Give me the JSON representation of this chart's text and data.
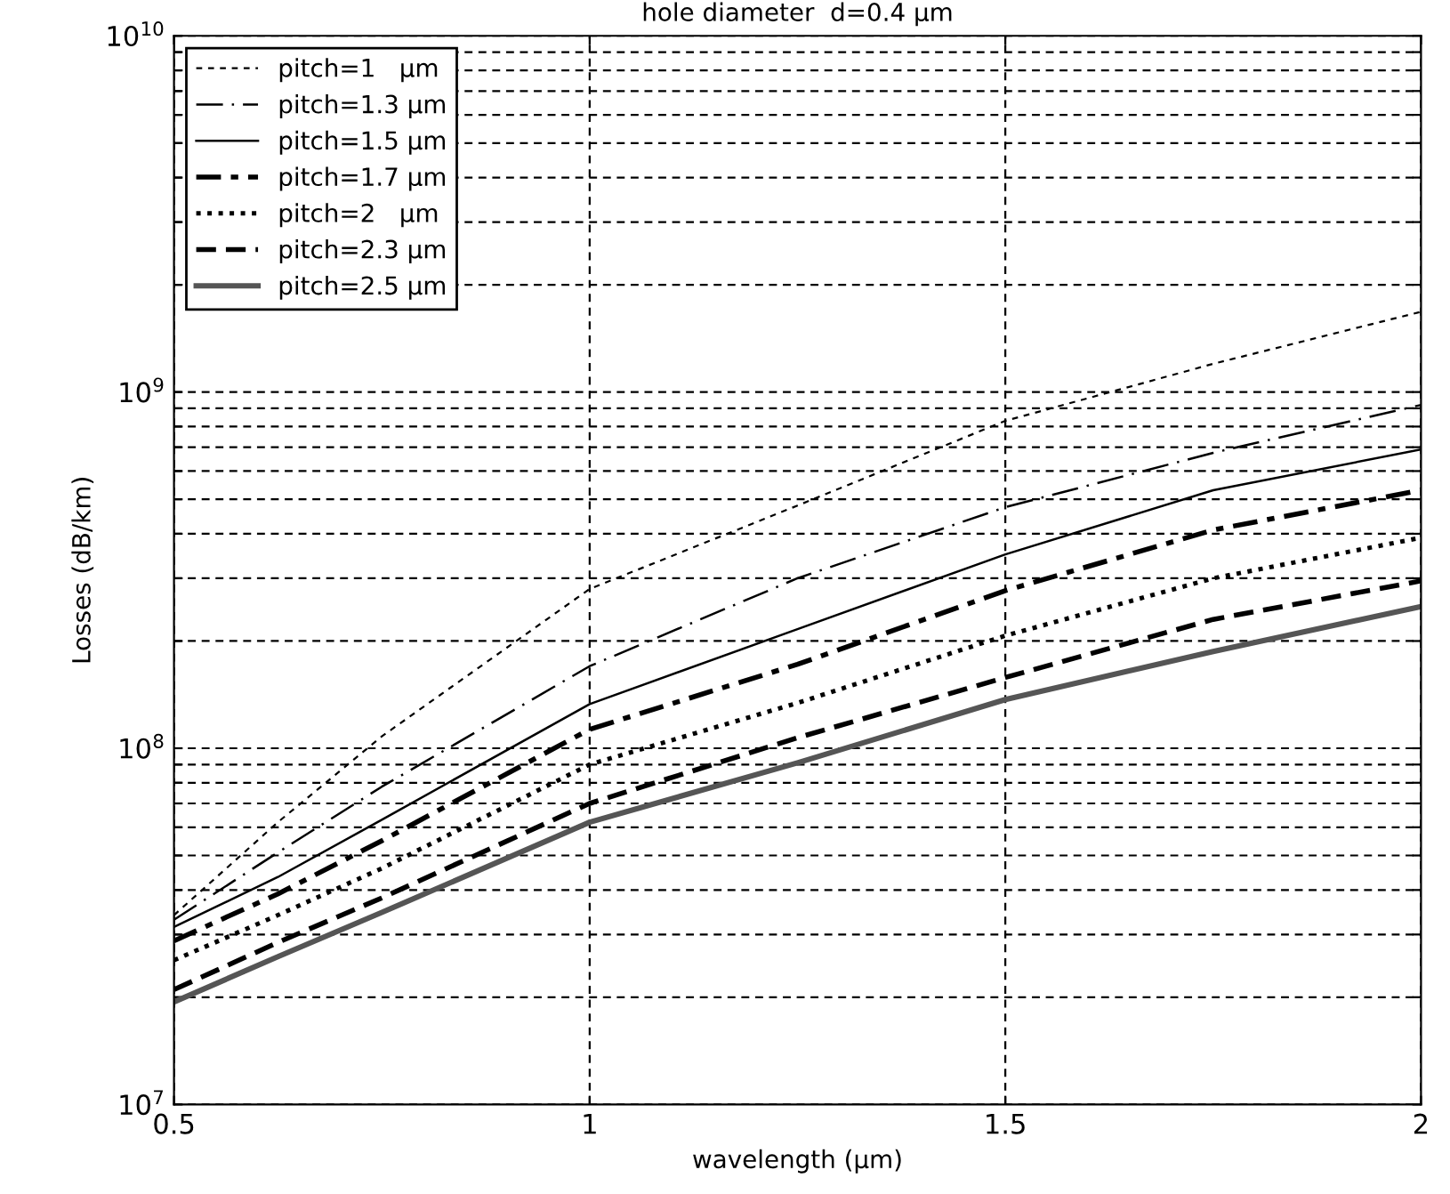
{
  "chart_data": {
    "type": "line",
    "title": "hole diameter  d=0.4 µm",
    "xlabel": "wavelength (µm)",
    "ylabel": "Losses (dB/km)",
    "log": "y",
    "grid": true,
    "legend": "top left",
    "marker": "none",
    "xlim": [
      0.5,
      2
    ],
    "xticks": [
      0.5,
      1,
      1.5,
      2
    ],
    "ylim": [
      10000000,
      10000000000
    ],
    "yticks": [
      {
        "value": 10000000,
        "label": "10$^{7}$"
      },
      {
        "value": 20000000,
        "label": null
      },
      {
        "value": 30000000,
        "label": null
      },
      {
        "value": 40000000,
        "label": null
      },
      {
        "value": 50000000,
        "label": null
      },
      {
        "value": 60000000,
        "label": null
      },
      {
        "value": 70000000,
        "label": null
      },
      {
        "value": 80000000,
        "label": null
      },
      {
        "value": 90000000,
        "label": null
      },
      {
        "value": 100000000,
        "label": "10$^{8}$"
      },
      {
        "value": 200000000,
        "label": null
      },
      {
        "value": 300000000,
        "label": null
      },
      {
        "value": 400000000,
        "label": null
      },
      {
        "value": 500000000,
        "label": null
      },
      {
        "value": 600000000,
        "label": null
      },
      {
        "value": 700000000,
        "label": null
      },
      {
        "value": 800000000,
        "label": null
      },
      {
        "value": 900000000,
        "label": null
      },
      {
        "value": 1000000000,
        "label": "10$^{9}$"
      },
      {
        "value": 2000000000,
        "label": null
      },
      {
        "value": 3000000000,
        "label": null
      },
      {
        "value": 4000000000,
        "label": null
      },
      {
        "value": 5000000000,
        "label": null
      },
      {
        "value": 6000000000,
        "label": null
      },
      {
        "value": 7000000000,
        "label": null
      },
      {
        "value": 8000000000,
        "label": null
      },
      {
        "value": 9000000000,
        "label": null
      },
      {
        "value": 10000000000,
        "label": "10$^{10}$"
      }
    ],
    "x": [
      0.5,
      0.625,
      0.75,
      1,
      1.25,
      1.5,
      1.75,
      2
    ],
    "series": [
      {
        "name": "pitch=1   µm",
        "color": "#000000",
        "line_style": "dashed",
        "values": [
          34000000,
          62000000,
          108000000,
          280000000,
          480000000,
          830000000,
          1200000000,
          1680000000
        ]
      },
      {
        "name": "pitch=1.3 µm",
        "color": "#000000",
        "line_style": "dashdot",
        "values": [
          33000000,
          51000000,
          78000000,
          170000000,
          300000000,
          475000000,
          675000000,
          920000000
        ]
      },
      {
        "name": "pitch=1.5 µm",
        "color": "#000000",
        "line_style": "solid",
        "values": [
          31500000,
          43500000,
          63000000,
          133000000,
          216000000,
          350000000,
          530000000,
          690000000
        ]
      },
      {
        "name": "pitch=1.7 µm",
        "color": "#000000",
        "line_style": "dashdot",
        "values": [
          28800000,
          39000000,
          55000000,
          113000000,
          172000000,
          277000000,
          410000000,
          530000000
        ]
      },
      {
        "name": "pitch=2   µm",
        "color": "#000000",
        "line_style": "dotted",
        "values": [
          25400000,
          34000000,
          46000000,
          90000000,
          134000000,
          207000000,
          300000000,
          390000000
        ]
      },
      {
        "name": "pitch=2.3 µm",
        "color": "#000000",
        "line_style": "dashed",
        "values": [
          21000000,
          28500000,
          38000000,
          70000000,
          107000000,
          158000000,
          230000000,
          295000000
        ]
      },
      {
        "name": "pitch=2.5 µm",
        "color": "#555555",
        "line_style": "solid",
        "values": [
          19400000,
          26000000,
          34600000,
          62000000,
          91000000,
          137000000,
          187000000,
          250000000
        ]
      }
    ]
  }
}
